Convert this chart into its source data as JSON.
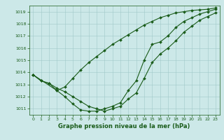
{
  "title": "",
  "xlabel": "Graphe pression niveau de la mer (hPa)",
  "ylabel": "",
  "bg_color": "#cce8e8",
  "line_color": "#1a5c1a",
  "xlim": [
    -0.5,
    23.5
  ],
  "ylim": [
    1010.5,
    1019.5
  ],
  "yticks": [
    1011,
    1012,
    1013,
    1014,
    1015,
    1016,
    1017,
    1018,
    1019
  ],
  "xticks": [
    0,
    1,
    2,
    3,
    4,
    5,
    6,
    7,
    8,
    9,
    10,
    11,
    12,
    13,
    14,
    15,
    16,
    17,
    18,
    19,
    20,
    21,
    22,
    23
  ],
  "series1": {
    "x": [
      0,
      1,
      2,
      3,
      4,
      5,
      6,
      7,
      8,
      9,
      10,
      11,
      12,
      13,
      14,
      15,
      16,
      17,
      18,
      19,
      20,
      21,
      22,
      23
    ],
    "y": [
      1013.8,
      1013.3,
      1013.1,
      1012.5,
      1012.0,
      1011.4,
      1010.9,
      1010.8,
      1010.8,
      1011.0,
      1011.2,
      1011.5,
      1012.5,
      1013.3,
      1015.0,
      1016.3,
      1016.5,
      1017.0,
      1017.7,
      1018.2,
      1018.5,
      1018.8,
      1019.0,
      1019.2
    ]
  },
  "series2": {
    "x": [
      0,
      1,
      2,
      3,
      4,
      5,
      6,
      7,
      8,
      9,
      10,
      11,
      12,
      13,
      14,
      15,
      16,
      17,
      18,
      19,
      20,
      21,
      22,
      23
    ],
    "y": [
      1013.8,
      1013.3,
      1013.1,
      1012.7,
      1012.4,
      1012.0,
      1011.6,
      1011.2,
      1011.0,
      1010.8,
      1011.0,
      1011.2,
      1011.8,
      1012.3,
      1013.5,
      1014.8,
      1015.5,
      1016.0,
      1016.6,
      1017.3,
      1017.8,
      1018.3,
      1018.6,
      1018.9
    ]
  },
  "series3": {
    "x": [
      0,
      3,
      4,
      5,
      6,
      7,
      8,
      9,
      10,
      11,
      12,
      13,
      14,
      15,
      16,
      17,
      18,
      19,
      20,
      21,
      22,
      23
    ],
    "y": [
      1013.8,
      1012.5,
      1012.8,
      1013.5,
      1014.2,
      1014.8,
      1015.3,
      1015.8,
      1016.3,
      1016.7,
      1017.1,
      1017.5,
      1017.9,
      1018.2,
      1018.5,
      1018.7,
      1018.9,
      1019.0,
      1019.1,
      1019.15,
      1019.2,
      1019.3
    ]
  },
  "figsize": [
    3.2,
    2.0
  ],
  "dpi": 100
}
